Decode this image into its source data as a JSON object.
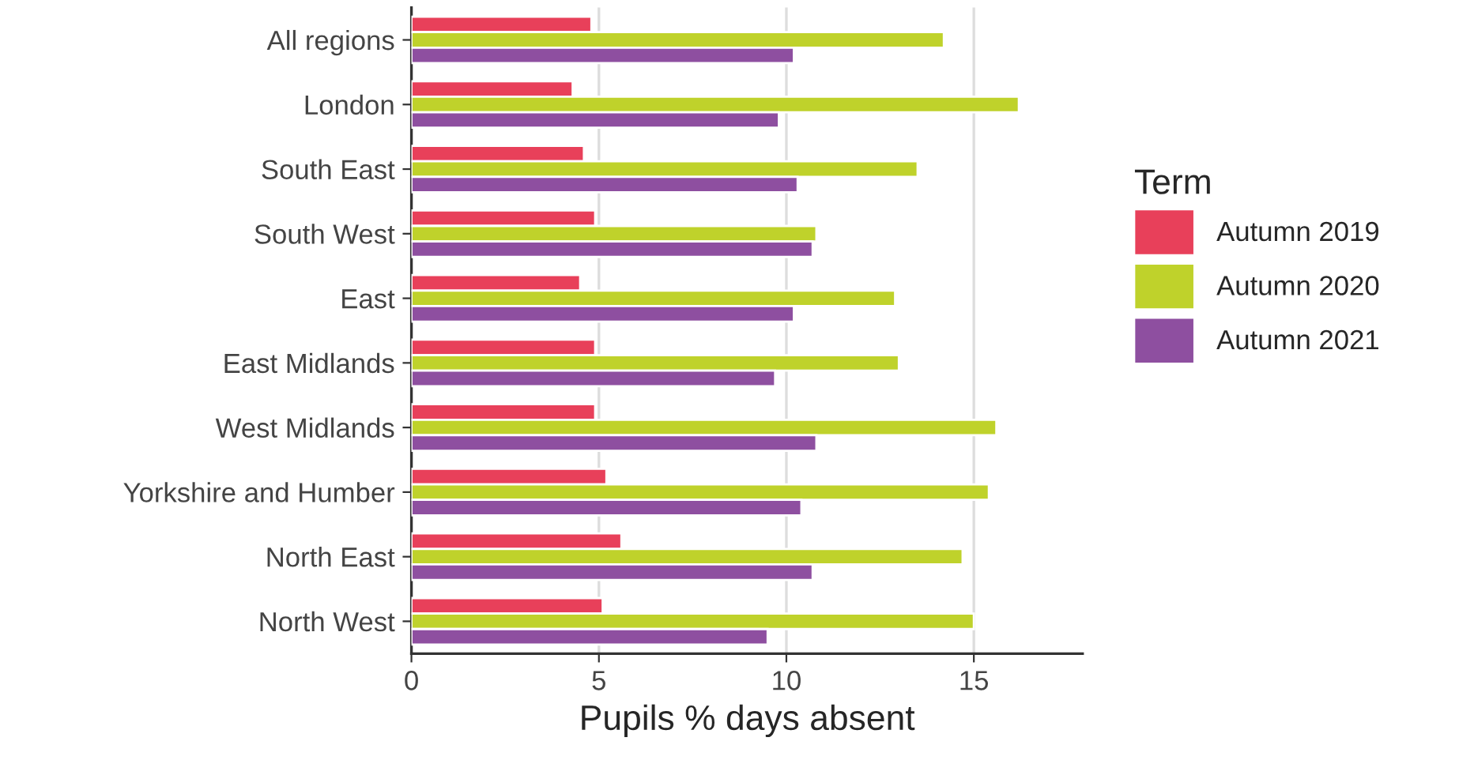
{
  "chart_data": {
    "type": "bar",
    "orientation": "horizontal",
    "xlabel": "Pupils % days absent",
    "legend_title": "Term",
    "legend": "right",
    "categories": [
      "All regions",
      "London",
      "South East",
      "South West",
      "East",
      "East Midlands",
      "West Midlands",
      "Yorkshire and Humber",
      "North East",
      "North West"
    ],
    "series": [
      {
        "name": "Autumn 2019",
        "color": "#e8405a",
        "values": [
          4.8,
          4.3,
          4.6,
          4.9,
          4.5,
          4.9,
          4.9,
          5.2,
          5.6,
          5.1
        ]
      },
      {
        "name": "Autumn 2020",
        "color": "#bfd22b",
        "values": [
          14.2,
          16.2,
          13.5,
          10.8,
          12.9,
          13.0,
          15.6,
          15.4,
          14.7,
          15.0
        ]
      },
      {
        "name": "Autumn 2021",
        "color": "#8e4fa0",
        "values": [
          10.2,
          9.8,
          10.3,
          10.7,
          10.2,
          9.7,
          10.8,
          10.4,
          10.7,
          9.5
        ]
      }
    ],
    "xlim": [
      0,
      17.9
    ],
    "xticks": [
      0,
      5,
      10,
      15
    ],
    "grid": "x"
  }
}
